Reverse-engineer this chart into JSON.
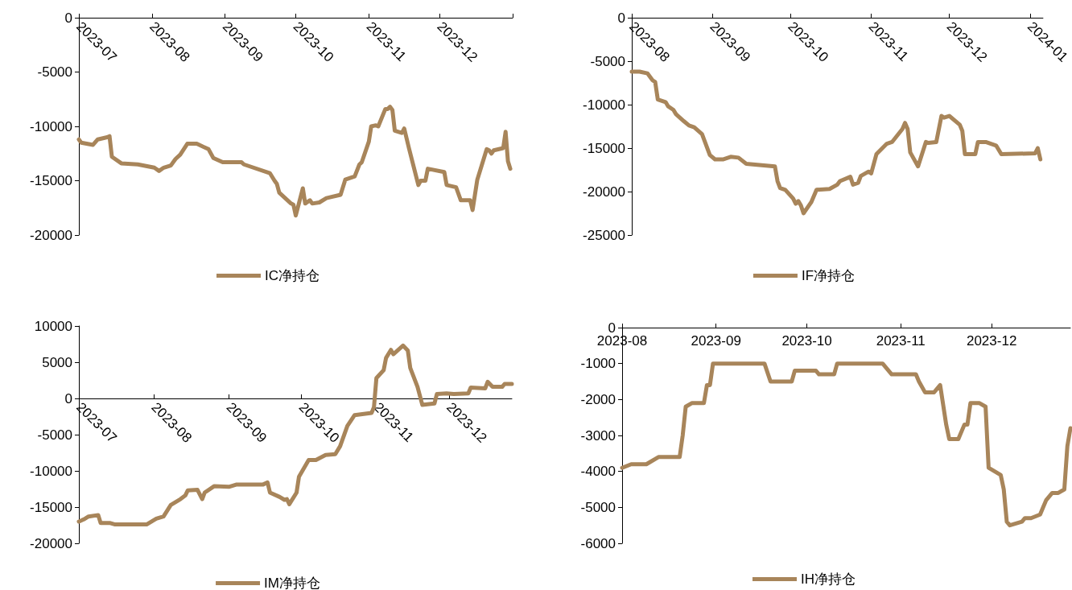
{
  "chart_data": [
    {
      "type": "line",
      "x": [
        "2023-07-01",
        "2023-07-02",
        "2023-07-07",
        "2023-07-09",
        "2023-07-13",
        "2023-07-14",
        "2023-07-15",
        "2023-07-19",
        "2023-07-26",
        "2023-08-02",
        "2023-08-04",
        "2023-08-06",
        "2023-08-09",
        "2023-08-11",
        "2023-08-13",
        "2023-08-16",
        "2023-08-20",
        "2023-08-24",
        "2023-08-25",
        "2023-08-27",
        "2023-08-31",
        "2023-09-08",
        "2023-09-09",
        "2023-09-20",
        "2023-09-22",
        "2023-09-23",
        "2023-09-24",
        "2023-09-29",
        "2023-09-30",
        "2023-10-01",
        "2023-10-04",
        "2023-10-05",
        "2023-10-07",
        "2023-10-08",
        "2023-10-11",
        "2023-10-14",
        "2023-10-20",
        "2023-10-22",
        "2023-10-26",
        "2023-10-28",
        "2023-10-29",
        "2023-11-01",
        "2023-11-02",
        "2023-11-04",
        "2023-11-05",
        "2023-11-08",
        "2023-11-09",
        "2023-11-10",
        "2023-11-11",
        "2023-11-12",
        "2023-11-15",
        "2023-11-16",
        "2023-11-18",
        "2023-11-22",
        "2023-11-23",
        "2023-11-25",
        "2023-11-26",
        "2023-12-03",
        "2023-12-04",
        "2023-12-08",
        "2023-12-10",
        "2023-12-14",
        "2023-12-15",
        "2023-12-17",
        "2023-12-21",
        "2023-12-22",
        "2023-12-23",
        "2023-12-24",
        "2023-12-28",
        "2023-12-29",
        "2023-12-30",
        "2023-12-31"
      ],
      "series": [
        {
          "name": "IC净持仓",
          "color": "#a8855a",
          "values": [
            -11200,
            -11500,
            -11700,
            -11200,
            -11000,
            -10900,
            -12800,
            -13400,
            -13500,
            -13800,
            -14100,
            -13800,
            -13600,
            -13000,
            -12600,
            -11600,
            -11600,
            -12000,
            -12100,
            -12900,
            -13300,
            -13300,
            -13500,
            -14300,
            -15000,
            -15300,
            -16100,
            -17100,
            -17200,
            -18200,
            -15700,
            -17100,
            -16800,
            -17100,
            -17000,
            -16600,
            -16300,
            -14900,
            -14600,
            -13500,
            -13300,
            -11400,
            -10000,
            -9900,
            -10000,
            -8400,
            -8400,
            -8200,
            -8500,
            -10400,
            -10600,
            -10200,
            -12000,
            -15400,
            -15000,
            -15000,
            -13900,
            -14200,
            -15400,
            -15600,
            -16800,
            -16800,
            -17700,
            -14900,
            -12100,
            -12200,
            -12500,
            -12200,
            -12000,
            -10500,
            -13200,
            -13900
          ]
        }
      ],
      "xlim": [
        "2023-07-01",
        "2024-01-01"
      ],
      "xticks": [
        "2023-07",
        "2023-08",
        "2023-09",
        "2023-10",
        "2023-11",
        "2023-12",
        {
          "value": "2024-01",
          "label": null
        }
      ],
      "ylim": [
        -20000,
        0
      ],
      "yticks": [
        -20000,
        -15000,
        -10000,
        -5000,
        0
      ],
      "grid": false,
      "legend": "bottom"
    },
    {
      "type": "line",
      "x": [
        "2023-08-01",
        "2023-08-04",
        "2023-08-07",
        "2023-08-09",
        "2023-08-10",
        "2023-08-11",
        "2023-08-14",
        "2023-08-15",
        "2023-08-17",
        "2023-08-18",
        "2023-08-21",
        "2023-08-23",
        "2023-08-25",
        "2023-08-28",
        "2023-08-31",
        "2023-09-02",
        "2023-09-05",
        "2023-09-08",
        "2023-09-11",
        "2023-09-14",
        "2023-09-25",
        "2023-09-26",
        "2023-09-27",
        "2023-09-29",
        "2023-10-02",
        "2023-10-03",
        "2023-10-04",
        "2023-10-05",
        "2023-10-06",
        "2023-10-09",
        "2023-10-11",
        "2023-10-16",
        "2023-10-19",
        "2023-10-20",
        "2023-10-24",
        "2023-10-25",
        "2023-10-27",
        "2023-10-28",
        "2023-10-31",
        "2023-11-01",
        "2023-11-03",
        "2023-11-07",
        "2023-11-09",
        "2023-11-13",
        "2023-11-14",
        "2023-11-15",
        "2023-11-16",
        "2023-11-19",
        "2023-11-22",
        "2023-11-23",
        "2023-11-26",
        "2023-11-28",
        "2023-11-29",
        "2023-12-01",
        "2023-12-05",
        "2023-12-06",
        "2023-12-07",
        "2023-12-11",
        "2023-12-12",
        "2023-12-15",
        "2023-12-19",
        "2023-12-21",
        "2024-01-03",
        "2024-01-04",
        "2024-01-05"
      ],
      "series": [
        {
          "name": "IF净持仓",
          "color": "#a8855a",
          "values": [
            -6200,
            -6200,
            -6400,
            -7200,
            -7400,
            -9400,
            -9700,
            -10200,
            -10600,
            -11100,
            -11900,
            -12400,
            -12600,
            -13400,
            -15800,
            -16300,
            -16300,
            -16000,
            -16100,
            -16800,
            -17100,
            -18800,
            -19600,
            -19800,
            -20800,
            -21400,
            -21100,
            -21600,
            -22500,
            -21200,
            -19800,
            -19700,
            -19200,
            -18800,
            -18300,
            -19200,
            -19000,
            -18200,
            -17700,
            -17900,
            -15700,
            -14500,
            -14300,
            -12800,
            -12100,
            -12800,
            -15500,
            -17100,
            -14300,
            -14400,
            -14300,
            -11300,
            -11500,
            -11300,
            -12300,
            -13000,
            -15700,
            -15700,
            -14300,
            -14300,
            -14700,
            -15700,
            -15600,
            -15000,
            -16300
          ]
        }
      ],
      "xlim": [
        "2023-08-01",
        "2024-01-06"
      ],
      "xticks": [
        "2023-08",
        "2023-09",
        "2023-10",
        "2023-11",
        "2023-12",
        "2024-01"
      ],
      "ylim": [
        -25000,
        0
      ],
      "yticks": [
        -25000,
        -20000,
        -15000,
        -10000,
        -5000,
        0
      ],
      "grid": false,
      "legend": "bottom"
    },
    {
      "type": "line",
      "x": [
        "2023-07-01",
        "2023-07-03",
        "2023-07-05",
        "2023-07-09",
        "2023-07-10",
        "2023-07-14",
        "2023-07-16",
        "2023-07-29",
        "2023-08-02",
        "2023-08-05",
        "2023-08-08",
        "2023-08-12",
        "2023-08-14",
        "2023-08-15",
        "2023-08-19",
        "2023-08-21",
        "2023-08-22",
        "2023-08-26",
        "2023-09-01",
        "2023-09-04",
        "2023-09-15",
        "2023-09-17",
        "2023-09-18",
        "2023-09-22",
        "2023-09-24",
        "2023-09-25",
        "2023-09-26",
        "2023-09-29",
        "2023-09-30",
        "2023-10-04",
        "2023-10-07",
        "2023-10-11",
        "2023-10-15",
        "2023-10-17",
        "2023-10-20",
        "2023-10-23",
        "2023-10-30",
        "2023-10-31",
        "2023-11-01",
        "2023-11-04",
        "2023-11-05",
        "2023-11-07",
        "2023-11-08",
        "2023-11-12",
        "2023-11-14",
        "2023-11-15",
        "2023-11-18",
        "2023-11-20",
        "2023-11-25",
        "2023-11-26",
        "2023-11-30",
        "2023-12-03",
        "2023-12-09",
        "2023-12-10",
        "2023-12-16",
        "2023-12-17",
        "2023-12-19",
        "2023-12-23",
        "2023-12-24",
        "2023-12-27"
      ],
      "series": [
        {
          "name": "IM净持仓",
          "color": "#a8855a",
          "values": [
            -17000,
            -16700,
            -16300,
            -16100,
            -17200,
            -17200,
            -17400,
            -17400,
            -16600,
            -16300,
            -14700,
            -13900,
            -13400,
            -12700,
            -12600,
            -13900,
            -13000,
            -12100,
            -12200,
            -11900,
            -11900,
            -11600,
            -13000,
            -13600,
            -14000,
            -13900,
            -14600,
            -13000,
            -10800,
            -8500,
            -8500,
            -7800,
            -7700,
            -6600,
            -3800,
            -2300,
            -2000,
            -1200,
            2800,
            3900,
            5600,
            6700,
            6100,
            7300,
            6600,
            4200,
            1600,
            -900,
            -700,
            600,
            700,
            600,
            700,
            1500,
            1400,
            2300,
            1600,
            1600,
            2000,
            2000
          ]
        }
      ],
      "xlim": [
        "2023-07-01",
        "2023-12-27"
      ],
      "xticks": [
        "2023-07",
        "2023-08",
        "2023-09",
        "2023-10",
        "2023-11",
        "2023-12"
      ],
      "ylim": [
        -20000,
        10000
      ],
      "yticks": [
        -20000,
        -15000,
        -10000,
        -5000,
        0,
        5000,
        10000
      ],
      "grid": false,
      "legend": "bottom"
    },
    {
      "type": "line",
      "x": [
        "2023-08-01",
        "2023-08-04",
        "2023-08-09",
        "2023-08-13",
        "2023-08-16",
        "2023-08-20",
        "2023-08-21",
        "2023-08-22",
        "2023-08-24",
        "2023-08-28",
        "2023-08-29",
        "2023-08-30",
        "2023-08-31",
        "2023-09-06",
        "2023-09-17",
        "2023-09-19",
        "2023-09-26",
        "2023-09-27",
        "2023-10-04",
        "2023-10-05",
        "2023-10-10",
        "2023-10-11",
        "2023-10-26",
        "2023-10-29",
        "2023-11-02",
        "2023-11-06",
        "2023-11-07",
        "2023-11-09",
        "2023-11-12",
        "2023-11-14",
        "2023-11-16",
        "2023-11-17",
        "2023-11-20",
        "2023-11-22",
        "2023-11-23",
        "2023-11-24",
        "2023-11-27",
        "2023-11-29",
        "2023-11-30",
        "2023-12-04",
        "2023-12-05",
        "2023-12-06",
        "2023-12-07",
        "2023-12-11",
        "2023-12-12",
        "2023-12-14",
        "2023-12-17",
        "2023-12-18",
        "2023-12-19",
        "2023-12-21",
        "2023-12-23",
        "2023-12-25",
        "2023-12-26",
        "2023-12-27"
      ],
      "series": [
        {
          "name": "IH净持仓",
          "color": "#a8855a",
          "values": [
            -3900,
            -3800,
            -3800,
            -3600,
            -3600,
            -3600,
            -3000,
            -2200,
            -2100,
            -2100,
            -1600,
            -1600,
            -1000,
            -1000,
            -1000,
            -1500,
            -1500,
            -1200,
            -1200,
            -1300,
            -1300,
            -1000,
            -1000,
            -1300,
            -1300,
            -1300,
            -1500,
            -1800,
            -1800,
            -1600,
            -2700,
            -3100,
            -3100,
            -2700,
            -2700,
            -2100,
            -2100,
            -2200,
            -3900,
            -4100,
            -4500,
            -5400,
            -5500,
            -5400,
            -5300,
            -5300,
            -5200,
            -5000,
            -4800,
            -4600,
            -4600,
            -4500,
            -3300,
            -2800
          ]
        }
      ],
      "xlim": [
        "2023-08-01",
        "2023-12-27"
      ],
      "xticks": [
        "2023-08",
        "2023-09",
        "2023-10",
        "2023-11",
        "2023-12"
      ],
      "ylim": [
        -6000,
        0
      ],
      "yticks": [
        -6000,
        -5000,
        -4000,
        -3000,
        -2000,
        -1000,
        0
      ],
      "grid": false,
      "legend": "bottom"
    }
  ]
}
